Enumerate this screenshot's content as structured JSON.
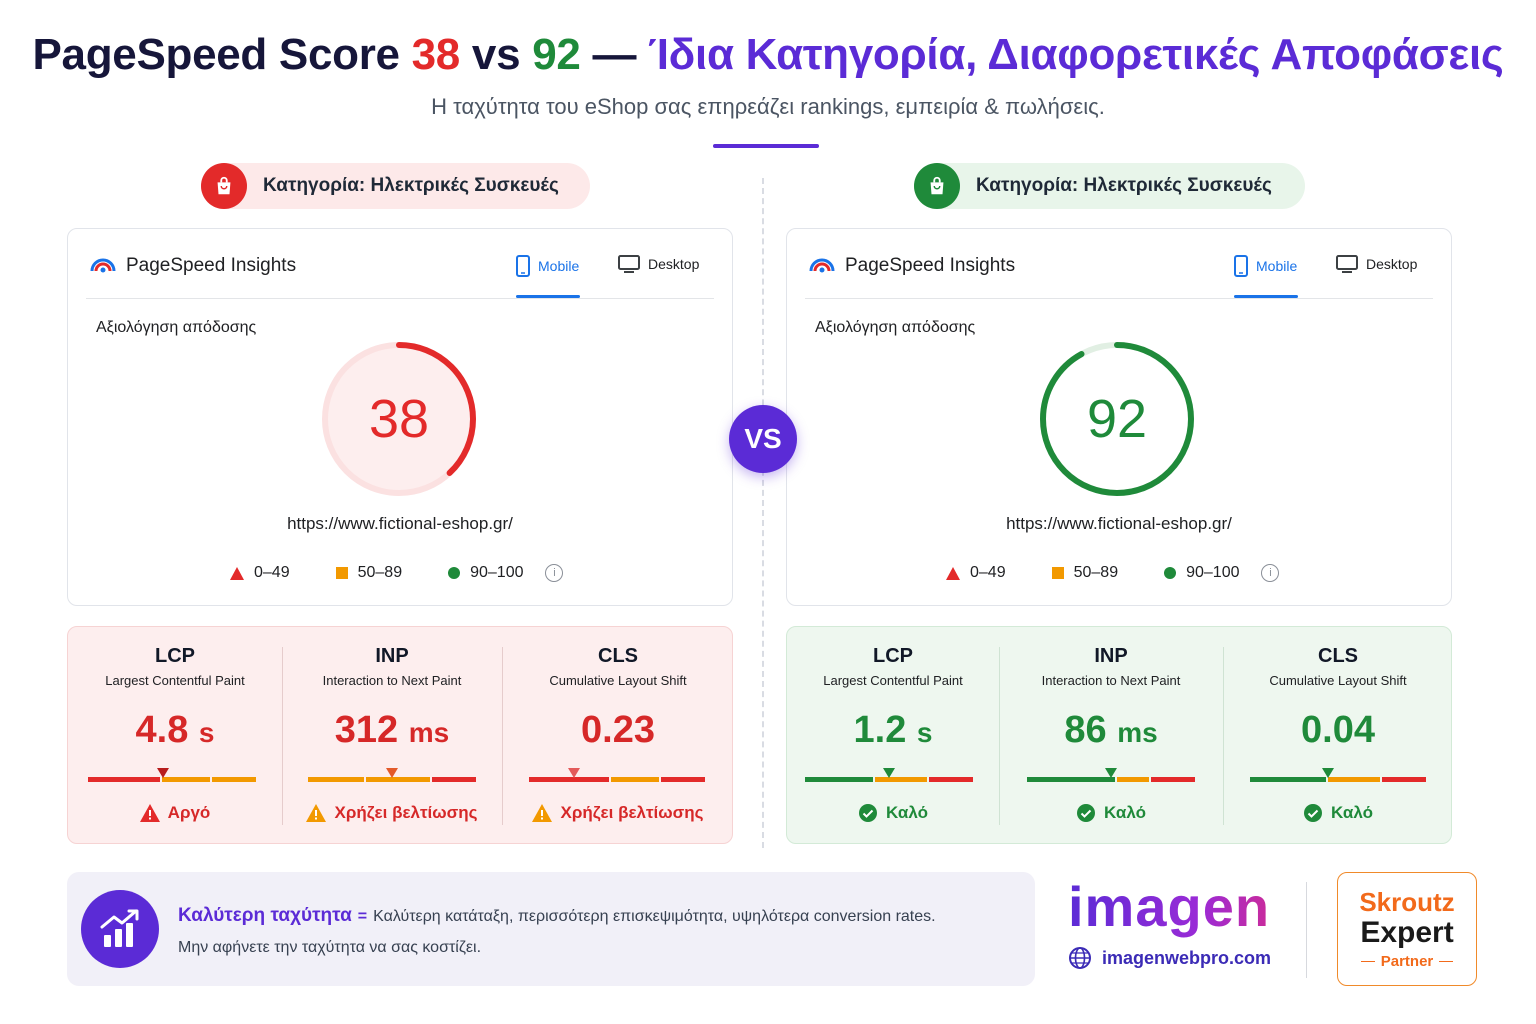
{
  "header": {
    "title_prefix": "PageSpeed Score ",
    "score_left": "38",
    "vs_word": " vs ",
    "score_right": "92",
    "dash": " — ",
    "title_suffix": "Ίδια Κατηγορία, Διαφορετικές Αποφάσεις",
    "subtitle": "Η ταχύτητα του eShop σας επηρεάζει rankings, εμπειρία & πωλήσεις."
  },
  "vs_label": "VS",
  "left": {
    "category": "Κατηγορία: Ηλεκτρικές Συσκευές",
    "card": {
      "tool_name": "PageSpeed Insights",
      "tab_mobile": "Mobile",
      "tab_desktop": "Desktop",
      "perf_label": "Αξιολόγηση απόδοσης",
      "score": "38",
      "score_fraction": 0.38,
      "url": "https://www.fictional-eshop.gr/",
      "legend": [
        "0–49",
        "50–89",
        "90–100"
      ]
    },
    "metrics": [
      {
        "abbr": "LCP",
        "full": "Largest Contentful Paint",
        "value": "4.8",
        "unit": "s",
        "status": "Αργό"
      },
      {
        "abbr": "INP",
        "full": "Interaction to Next Paint",
        "value": "312",
        "unit": "ms",
        "status": "Χρήζει βελτίωσης"
      },
      {
        "abbr": "CLS",
        "full": "Cumulative Layout Shift",
        "value": "0.23",
        "unit": "",
        "status": "Χρήζει βελτίωσης"
      }
    ]
  },
  "right": {
    "category": "Κατηγορία: Ηλεκτρικές Συσκευές",
    "card": {
      "tool_name": "PageSpeed Insights",
      "tab_mobile": "Mobile",
      "tab_desktop": "Desktop",
      "perf_label": "Αξιολόγηση απόδοσης",
      "score": "92",
      "score_fraction": 0.92,
      "url": "https://www.fictional-eshop.gr/",
      "legend": [
        "0–49",
        "50–89",
        "90–100"
      ]
    },
    "metrics": [
      {
        "abbr": "LCP",
        "full": "Largest Contentful Paint",
        "value": "1.2",
        "unit": "s",
        "status": "Καλό"
      },
      {
        "abbr": "INP",
        "full": "Interaction to Next Paint",
        "value": "86",
        "unit": "ms",
        "status": "Καλό"
      },
      {
        "abbr": "CLS",
        "full": "Cumulative Layout Shift",
        "value": "0.04",
        "unit": "",
        "status": "Καλό"
      }
    ]
  },
  "footer": {
    "strong": "Καλύτερη ταχύτητα",
    "equals": "=",
    "line1_rest": "Καλύτερη κατάταξη, περισσότερη επισκεψιμότητα, υψηλότερα conversion rates.",
    "line2": "Μην αφήνετε την ταχύτητα να σας κοστίζει."
  },
  "brand": {
    "name": "imagen",
    "site": "imagenwebpro.com"
  },
  "partner_badge": {
    "line1": "Skroutz",
    "line2": "Expert",
    "line3": "Partner"
  },
  "colors": {
    "red": "#e32a2a",
    "orange": "#f29900",
    "green": "#1f8a3a",
    "purple": "#5b2bd6",
    "blue": "#1a73e8"
  },
  "icons": [
    "shopping-bag-icon",
    "pagespeed-logo-icon",
    "phone-icon",
    "monitor-icon",
    "triangle-icon",
    "square-icon",
    "circle-icon",
    "info-icon",
    "warning-icon",
    "check-circle-icon",
    "bar-chart-growth-icon",
    "globe-icon"
  ]
}
